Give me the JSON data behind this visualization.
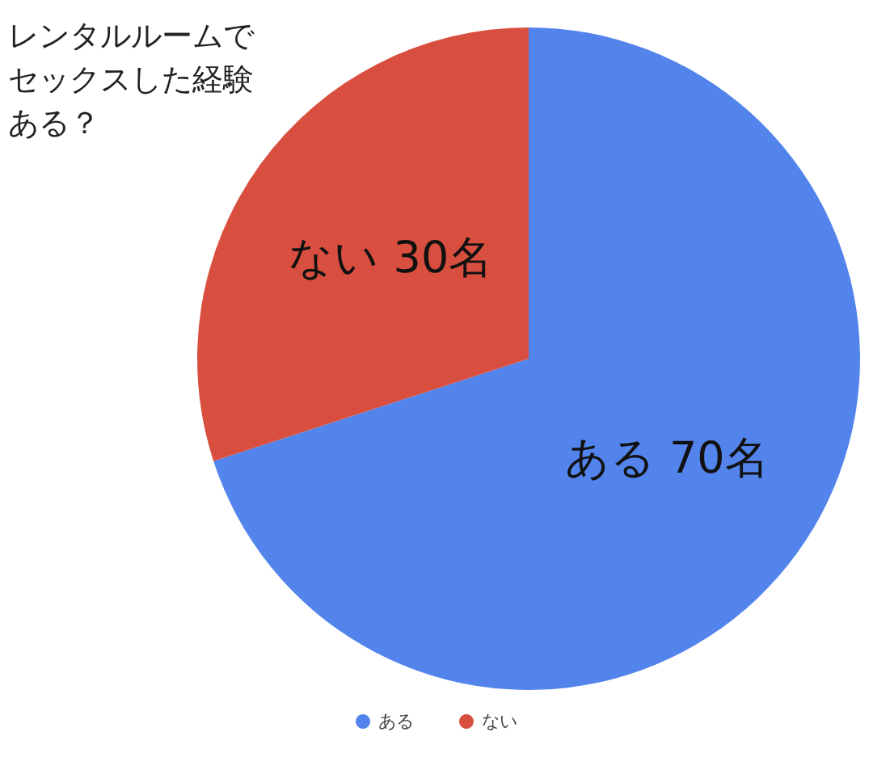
{
  "chart_data": {
    "type": "pie",
    "title": "レンタルルームでセックスした経験ある？",
    "categories": [
      "ある",
      "ない"
    ],
    "values": [
      70,
      30
    ],
    "colors": [
      "#5384ec",
      "#d84f3f"
    ],
    "value_labels": [
      "ある 70名",
      "ない 30名"
    ],
    "legend": "bottom"
  }
}
